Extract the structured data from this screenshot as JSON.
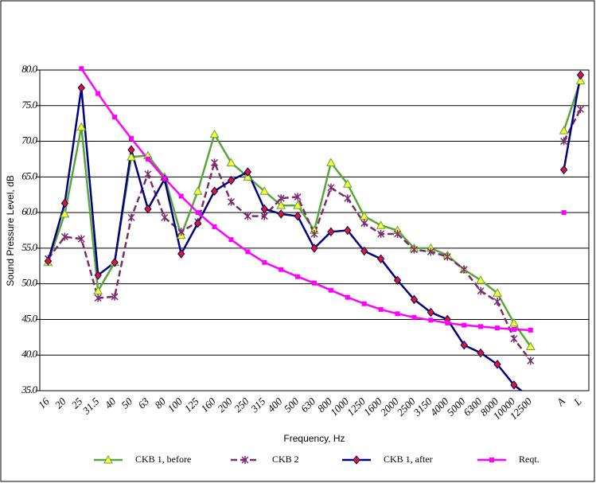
{
  "chart_data": {
    "type": "line",
    "y_label": "Sound Pressure Level, dB",
    "x_label": "Frequency, Hz",
    "categories": [
      "16",
      "20",
      "25",
      "31.5",
      "40",
      "50",
      "63",
      "80",
      "100",
      "125",
      "160",
      "200",
      "250",
      "315",
      "400",
      "500",
      "630",
      "800",
      "1000",
      "1250",
      "1600",
      "2000",
      "2500",
      "3150",
      "4000",
      "5000",
      "6300",
      "8000",
      "10000",
      "12500",
      null,
      "A",
      "L"
    ],
    "ylim": [
      35,
      80
    ],
    "yticks": [
      {
        "value": 35,
        "label": "35.0"
      },
      {
        "value": 40,
        "label": "40.0"
      },
      {
        "value": 45,
        "label": "45.0"
      },
      {
        "value": 50,
        "label": "50.0"
      },
      {
        "value": 55,
        "label": "55.0"
      },
      {
        "value": 60,
        "label": "60.0"
      },
      {
        "value": 65,
        "label": "65.0"
      },
      {
        "value": 70,
        "label": "70.0"
      },
      {
        "value": 75,
        "label": "75.0"
      },
      {
        "value": 80,
        "label": "80.0"
      }
    ],
    "grid": true,
    "series": [
      {
        "name": "CKB 1, before",
        "color": "#5aa53c",
        "marker": "triangle",
        "marker_color": "#ffff33",
        "dash": false,
        "values": [
          53,
          59.8,
          72,
          49,
          53,
          67.8,
          68,
          65,
          56.8,
          63,
          71,
          67,
          65,
          63,
          61,
          61,
          57.5,
          67,
          64,
          59.5,
          58.2,
          57.5,
          55,
          55,
          54,
          52,
          50.5,
          48.7,
          44.5,
          41.2,
          null,
          71.5,
          78.5
        ]
      },
      {
        "name": "CKB 2",
        "color": "#7b2d6e",
        "marker": "star",
        "marker_color": "#7b2d6e",
        "dash": true,
        "values": [
          53.5,
          56.6,
          56.3,
          48,
          48.2,
          59.3,
          65.4,
          59.3,
          57.3,
          58.7,
          67,
          61.5,
          59.5,
          59.5,
          62,
          62.2,
          57,
          63.5,
          62,
          58.5,
          57,
          57,
          54.8,
          54.5,
          53.8,
          52,
          49,
          47.5,
          42.3,
          39.2,
          null,
          70,
          74.5
        ]
      },
      {
        "name": "CKB 1, after",
        "color": "#000080",
        "marker": "diamond",
        "marker_color": "#e8141e",
        "dash": false,
        "values": [
          53.2,
          61.3,
          77.5,
          51.2,
          53,
          68.8,
          60.5,
          64.7,
          54.2,
          58.5,
          63,
          64.5,
          65.7,
          60.5,
          59.8,
          59.5,
          55,
          57.3,
          57.5,
          54.6,
          53.5,
          50.5,
          47.8,
          46,
          45,
          41.4,
          40.3,
          38.7,
          35.8,
          34,
          null,
          66,
          79.3
        ]
      },
      {
        "name": "Reqt.",
        "color": "#ff00ff",
        "marker": "square",
        "marker_color": "#ff00ff",
        "dash": false,
        "values": [
          null,
          null,
          80.2,
          76.7,
          73.4,
          70.4,
          67.5,
          64.8,
          62.3,
          60,
          58,
          56.2,
          54.5,
          53,
          52,
          51,
          50.1,
          49.1,
          48.1,
          47.2,
          46.4,
          45.8,
          45.3,
          44.9,
          44.5,
          44.2,
          44,
          43.8,
          43.6,
          43.5,
          null,
          60,
          null
        ]
      }
    ]
  }
}
